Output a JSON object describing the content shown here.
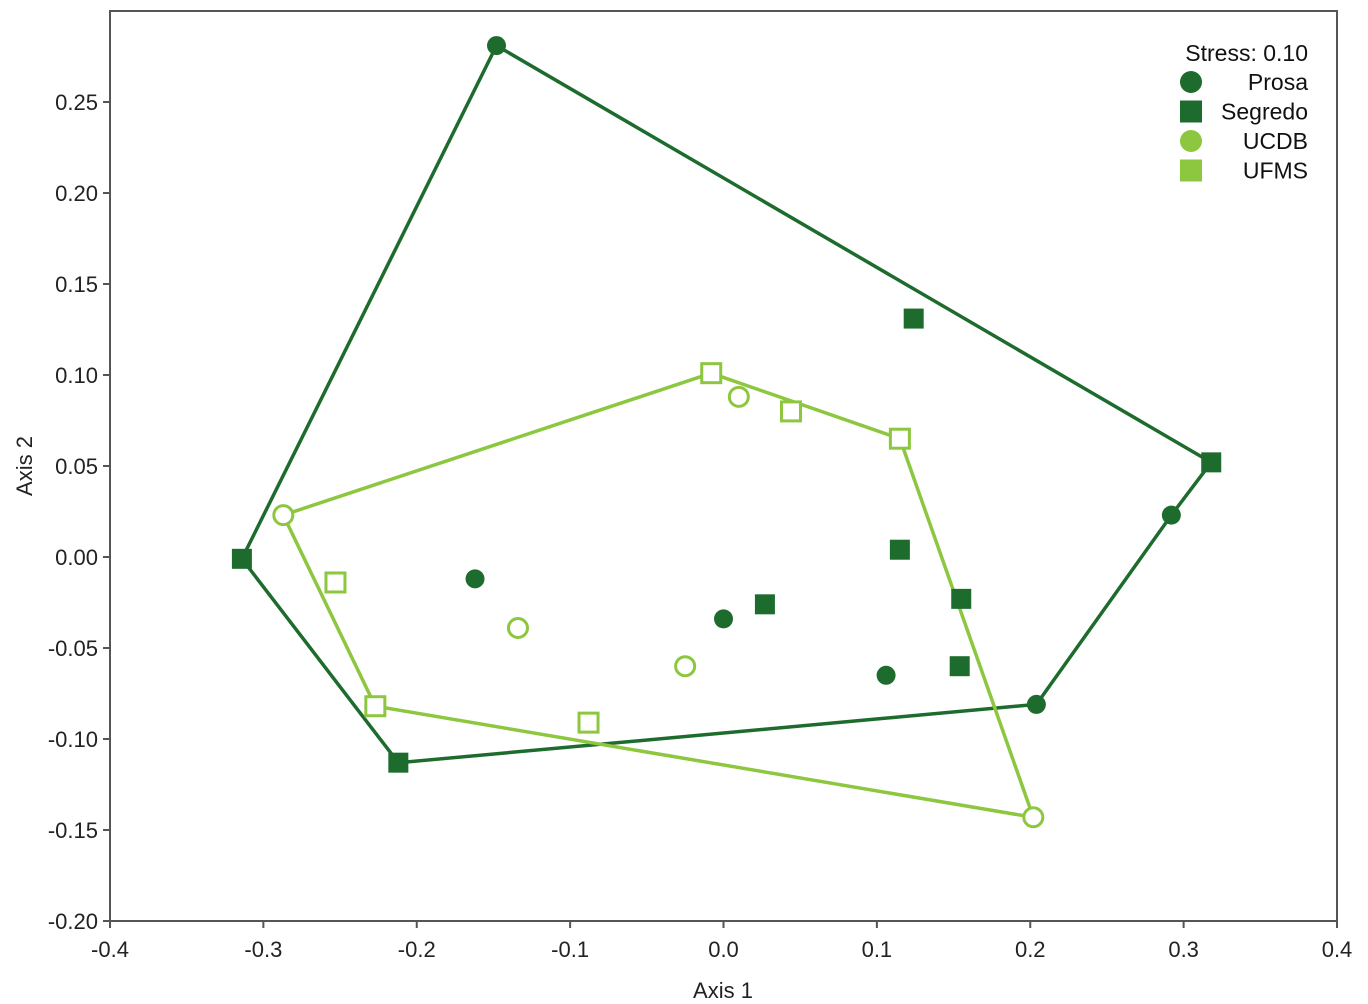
{
  "chart_data": {
    "type": "scatter",
    "xlabel": "Axis 1",
    "ylabel": "Axis 2",
    "xlim": [
      -0.4,
      0.4
    ],
    "ylim": [
      -0.2,
      0.3
    ],
    "xticks": [
      -0.4,
      -0.3,
      -0.2,
      -0.1,
      0.0,
      0.1,
      0.2,
      0.3,
      0.4
    ],
    "xtick_labels": [
      "-0.4",
      "-0.3",
      "-0.2",
      "-0.1",
      "0.0",
      "0.1",
      "0.2",
      "0.3",
      "0.4"
    ],
    "yticks": [
      -0.2,
      -0.15,
      -0.1,
      -0.05,
      0.0,
      0.05,
      0.1,
      0.15,
      0.2,
      0.25
    ],
    "ytick_labels": [
      "-0.20",
      "-0.15",
      "-0.10",
      "-0.05",
      "0.00",
      "0.05",
      "0.10",
      "0.15",
      "0.20",
      "0.25"
    ],
    "grid": false,
    "legend_position": "top-right",
    "annotation": "Stress: 0.10",
    "colors": {
      "dark": "#1e6b2e",
      "light": "#8dc63f"
    },
    "hulls": [
      {
        "color": "#1e6b2e",
        "points": [
          [
            -0.148,
            0.281
          ],
          [
            0.318,
            0.052
          ],
          [
            0.292,
            0.023
          ],
          [
            0.204,
            -0.081
          ],
          [
            -0.212,
            -0.113
          ],
          [
            -0.314,
            -0.001
          ]
        ]
      },
      {
        "color": "#8dc63f",
        "points": [
          [
            -0.008,
            0.101
          ],
          [
            0.115,
            0.065
          ],
          [
            0.202,
            -0.143
          ],
          [
            -0.227,
            -0.082
          ],
          [
            -0.287,
            0.023
          ]
        ]
      }
    ],
    "series": [
      {
        "name": "Prosa",
        "marker": "circle",
        "filled": true,
        "color": "#1e6b2e",
        "points": [
          [
            -0.148,
            0.281
          ],
          [
            0.292,
            0.023
          ],
          [
            0.204,
            -0.081
          ],
          [
            -0.162,
            -0.012
          ],
          [
            0.0,
            -0.034
          ],
          [
            0.106,
            -0.065
          ]
        ]
      },
      {
        "name": "Segredo",
        "marker": "square",
        "filled": true,
        "color": "#1e6b2e",
        "points": [
          [
            -0.314,
            -0.001
          ],
          [
            -0.212,
            -0.113
          ],
          [
            0.318,
            0.052
          ],
          [
            0.124,
            0.131
          ],
          [
            0.115,
            0.004
          ],
          [
            0.027,
            -0.026
          ],
          [
            0.155,
            -0.023
          ],
          [
            0.154,
            -0.06
          ]
        ]
      },
      {
        "name": "UCDB",
        "marker": "circle",
        "filled": false,
        "color": "#8dc63f",
        "points": [
          [
            -0.287,
            0.023
          ],
          [
            0.01,
            0.088
          ],
          [
            -0.134,
            -0.039
          ],
          [
            -0.025,
            -0.06
          ],
          [
            0.202,
            -0.143
          ]
        ]
      },
      {
        "name": "UFMS",
        "marker": "square",
        "filled": false,
        "color": "#8dc63f",
        "points": [
          [
            -0.008,
            0.101
          ],
          [
            0.044,
            0.08
          ],
          [
            0.115,
            0.065
          ],
          [
            -0.253,
            -0.014
          ],
          [
            -0.227,
            -0.082
          ],
          [
            -0.088,
            -0.091
          ]
        ]
      }
    ]
  }
}
